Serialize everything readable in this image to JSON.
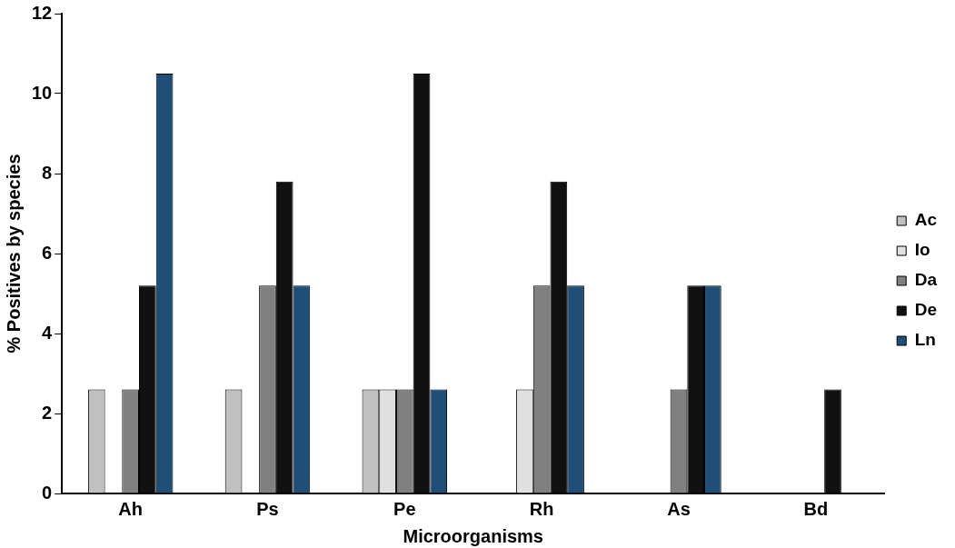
{
  "chart_data": {
    "type": "bar",
    "xlabel": "Microorganisms",
    "ylabel": "% Positives by species",
    "categories": [
      "Ah",
      "Ps",
      "Pe",
      "Rh",
      "As",
      "Bd"
    ],
    "series": [
      {
        "name": "Ac",
        "color": "#c0c0c0",
        "values": [
          2.6,
          2.6,
          2.6,
          0,
          0,
          0
        ]
      },
      {
        "name": "Io",
        "color": "#e0e0e0",
        "values": [
          0,
          0,
          2.6,
          2.6,
          0,
          0
        ]
      },
      {
        "name": "Da",
        "color": "#808080",
        "values": [
          2.6,
          5.2,
          2.6,
          5.2,
          2.6,
          0
        ]
      },
      {
        "name": "De",
        "color": "#111111",
        "values": [
          5.2,
          7.8,
          10.5,
          7.8,
          5.2,
          2.6
        ]
      },
      {
        "name": "Ln",
        "color": "#1f4e79",
        "values": [
          10.5,
          5.2,
          2.6,
          5.2,
          5.2,
          0
        ]
      }
    ],
    "ylim": [
      0,
      12
    ],
    "yticks": [
      0,
      2,
      4,
      6,
      8,
      10,
      12
    ],
    "grid": false,
    "legend": "right"
  }
}
